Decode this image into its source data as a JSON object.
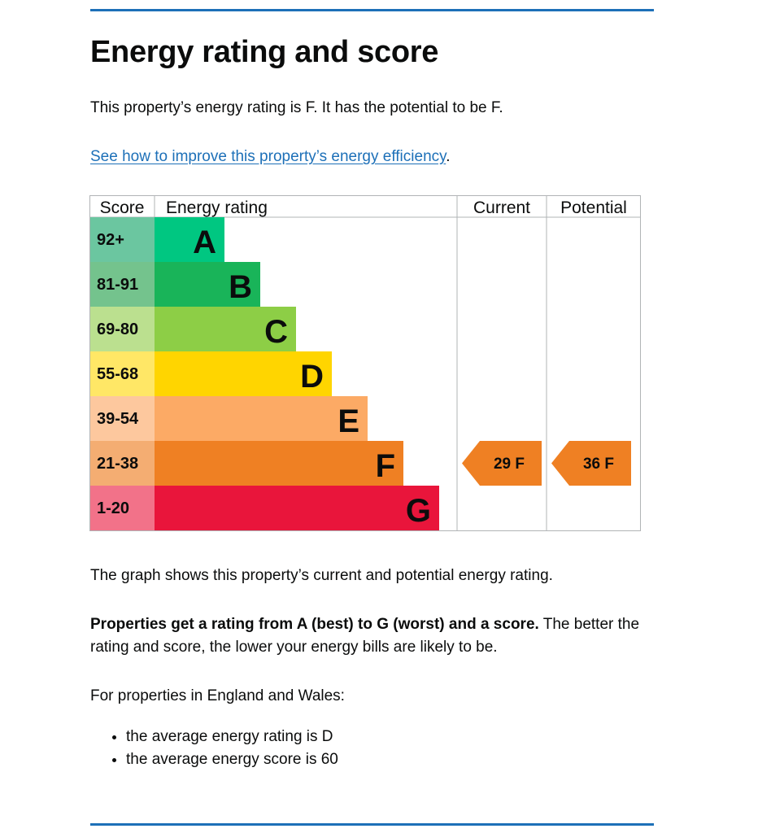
{
  "heading": "Energy rating and score",
  "rating_text": "This property’s energy rating is F. It has the potential to be F.",
  "improve_link": "See how to improve this property’s energy efficiency",
  "improve_suffix": ".",
  "graph_text": "The graph shows this property’s current and potential energy rating.",
  "properties_bold": "Properties get a rating from A (best) to G (worst) and a score.",
  "properties_rest": " The better the rating and score, the lower your energy bills are likely to be.",
  "wales_text": "For properties in England and Wales:",
  "averages": [
    "the average energy rating is D",
    "the average energy score is 60"
  ],
  "chart_data": {
    "type": "table",
    "columns": [
      "Score",
      "Energy rating",
      "Current",
      "Potential"
    ],
    "bands": [
      {
        "letter": "A",
        "score": "92+",
        "color": "#00c781",
        "score_color": "#6bc6a0"
      },
      {
        "letter": "B",
        "score": "81-91",
        "color": "#19b459",
        "score_color": "#74c38d"
      },
      {
        "letter": "C",
        "score": "69-80",
        "color": "#8dce46",
        "score_color": "#bbe08f"
      },
      {
        "letter": "D",
        "score": "55-68",
        "color": "#ffd500",
        "score_color": "#ffe766"
      },
      {
        "letter": "E",
        "score": "39-54",
        "color": "#fcaa65",
        "score_color": "#fdc89e"
      },
      {
        "letter": "F",
        "score": "21-38",
        "color": "#ef8023",
        "score_color": "#f4ad72"
      },
      {
        "letter": "G",
        "score": "1-20",
        "color": "#e9153b",
        "score_color": "#f27289"
      }
    ],
    "current": {
      "score": 29,
      "rating": "F",
      "label": "29  F"
    },
    "potential": {
      "score": 36,
      "rating": "F",
      "label": "36  F"
    }
  }
}
